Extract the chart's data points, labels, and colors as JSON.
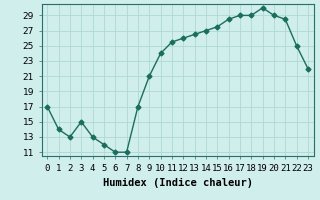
{
  "x": [
    0,
    1,
    2,
    3,
    4,
    5,
    6,
    7,
    8,
    9,
    10,
    11,
    12,
    13,
    14,
    15,
    16,
    17,
    18,
    19,
    20,
    21,
    22,
    23
  ],
  "y": [
    17,
    14,
    13,
    15,
    13,
    12,
    11,
    11,
    17,
    21,
    24,
    25.5,
    26,
    26.5,
    27,
    27.5,
    28.5,
    29,
    29,
    30,
    29,
    28.5,
    25,
    22
  ],
  "line_color": "#1a6e5e",
  "marker": "D",
  "marker_size": 2.5,
  "bg_color": "#d0eeec",
  "grid_color": "#aed8d4",
  "xlabel": "Humidex (Indice chaleur)",
  "xlim": [
    -0.5,
    23.5
  ],
  "ylim": [
    10.5,
    30.5
  ],
  "yticks": [
    11,
    13,
    15,
    17,
    19,
    21,
    23,
    25,
    27,
    29
  ],
  "xtick_labels": [
    "0",
    "1",
    "2",
    "3",
    "4",
    "5",
    "6",
    "7",
    "8",
    "9",
    "10",
    "11",
    "12",
    "13",
    "14",
    "15",
    "16",
    "17",
    "18",
    "19",
    "20",
    "21",
    "22",
    "23"
  ],
  "xlabel_fontsize": 7.5,
  "tick_fontsize": 6.5
}
